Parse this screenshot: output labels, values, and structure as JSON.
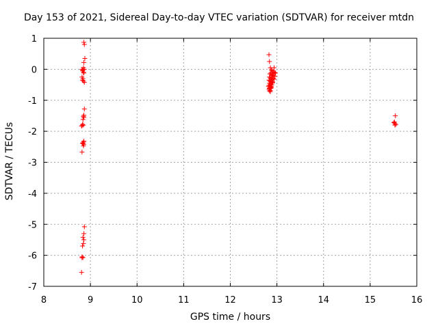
{
  "chart_data": {
    "type": "scatter",
    "title": "Day 153 of 2021, Sidereal Day-to-day VTEC variation (SDTVAR) for receiver mtdn",
    "xlabel": "GPS time / hours",
    "ylabel": "SDTVAR / TECUs",
    "xlim": [
      8,
      16
    ],
    "ylim": [
      -7,
      1
    ],
    "xticks": [
      8,
      9,
      10,
      11,
      12,
      13,
      14,
      15,
      16
    ],
    "yticks": [
      1,
      0,
      -1,
      -2,
      -3,
      -4,
      -5,
      -6,
      -7
    ],
    "grid": true,
    "marker": "+",
    "color": "#ff0000",
    "series": [
      {
        "name": "SDTVAR",
        "x": [
          8.86,
          8.87,
          8.88,
          8.86,
          8.85,
          8.82,
          8.84,
          8.87,
          8.83,
          8.85,
          8.86,
          8.82,
          8.84,
          8.83,
          8.85,
          8.87,
          8.87,
          8.86,
          8.85,
          8.84,
          8.83,
          8.82,
          8.81,
          8.85,
          8.86,
          8.86,
          8.85,
          8.84,
          8.86,
          8.83,
          8.85,
          8.82,
          8.87,
          8.86,
          8.84,
          8.86,
          8.85,
          8.83,
          8.82,
          8.84,
          8.82,
          8.81,
          12.83,
          12.84,
          12.86,
          12.88,
          12.9,
          12.92,
          12.94,
          12.95,
          12.97,
          12.85,
          12.87,
          12.89,
          12.91,
          12.93,
          12.96,
          12.84,
          12.86,
          12.88,
          12.9,
          12.92,
          12.94,
          12.83,
          12.85,
          12.87,
          12.89,
          12.91,
          12.84,
          12.86,
          12.88,
          12.9,
          12.83,
          12.85,
          12.87,
          12.89,
          12.84,
          12.86,
          12.83,
          12.85,
          12.84,
          12.86,
          12.88,
          12.9,
          12.82,
          12.84,
          12.86,
          12.88,
          15.54,
          15.52,
          15.51,
          15.53,
          15.55,
          15.53
        ],
        "y": [
          0.87,
          0.8,
          0.35,
          0.22,
          0.05,
          0.0,
          -0.02,
          0.0,
          -0.05,
          -0.1,
          -0.12,
          -0.25,
          -0.3,
          -0.35,
          -0.38,
          -0.42,
          -1.28,
          -1.48,
          -1.52,
          -1.62,
          -1.78,
          -1.82,
          -1.83,
          -1.8,
          -1.55,
          -2.32,
          -2.35,
          -2.4,
          -2.42,
          -2.38,
          -2.47,
          -2.67,
          -5.08,
          -5.3,
          -5.42,
          -5.5,
          -5.62,
          -5.7,
          -6.05,
          -6.07,
          -6.08,
          -6.55,
          0.47,
          0.25,
          0.05,
          -0.02,
          -0.05,
          -0.08,
          0.05,
          -0.1,
          -0.12,
          -0.15,
          -0.12,
          -0.18,
          -0.2,
          -0.15,
          -0.22,
          -0.25,
          -0.28,
          -0.3,
          -0.25,
          -0.3,
          -0.32,
          -0.35,
          -0.38,
          -0.4,
          -0.35,
          -0.42,
          -0.45,
          -0.48,
          -0.5,
          -0.45,
          -0.52,
          -0.55,
          -0.58,
          -0.5,
          -0.6,
          -0.62,
          -0.65,
          -0.6,
          -0.7,
          -0.68,
          -0.55,
          -0.4,
          -0.55,
          -0.62,
          -0.72,
          -0.6,
          -1.5,
          -1.7,
          -1.72,
          -1.75,
          -1.78,
          -1.8
        ]
      }
    ]
  }
}
